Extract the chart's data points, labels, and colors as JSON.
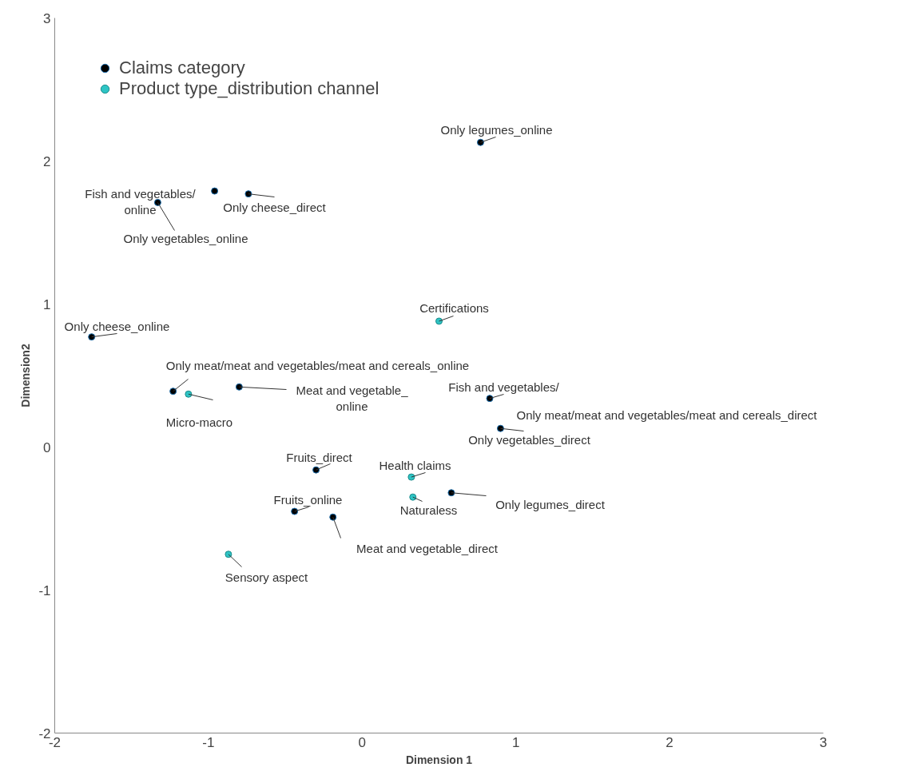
{
  "chart_data": {
    "type": "scatter",
    "xlabel": "Dimension 1",
    "ylabel": "Dimension2",
    "xlim": [
      -2,
      3
    ],
    "ylim": [
      -2,
      3
    ],
    "xticks": [
      -2,
      -1,
      0,
      1,
      2,
      3
    ],
    "yticks": [
      -2,
      -1,
      0,
      1,
      2,
      3
    ],
    "grid": false,
    "legend": "top left",
    "marker": "circle",
    "series": [
      {
        "name": "Claims category",
        "color": "#000000",
        "x": [
          0.77,
          -0.96,
          -0.74,
          -1.33,
          -1.76,
          -1.23,
          -0.8,
          0.83,
          0.9,
          -0.3,
          0.58,
          -0.44,
          -0.19
        ],
        "values": [
          2.13,
          1.79,
          1.77,
          1.71,
          0.77,
          0.39,
          0.42,
          0.34,
          0.13,
          -0.16,
          -0.32,
          -0.45,
          -0.49
        ]
      },
      {
        "name": "Product type_distribution channel",
        "color": "#2ec4c4",
        "x": [
          0.5,
          -1.13,
          0.32,
          0.33,
          -0.87
        ],
        "values": [
          0.88,
          0.37,
          -0.21,
          -0.35,
          -0.75
        ]
      }
    ],
    "annotations": [
      {
        "text": "Only legumes_online",
        "x": 0.77,
        "y": 2.13
      },
      "Fish and vegetables/\nonline",
      {
        "text": "Only cheese_direct",
        "x": -0.74,
        "y": 1.77
      },
      {
        "text": "Only vegetables_online",
        "x": -1.33,
        "y": 1.71
      },
      {
        "text": "Only cheese_online",
        "x": -1.76,
        "y": 0.77
      },
      {
        "text": "Only meat/meat and vegetables/meat and cereals_online",
        "x": -1.23,
        "y": 0.39
      },
      {
        "text": "Meat and vegetable_\nonline",
        "x": -0.8,
        "y": 0.42
      },
      {
        "text": "Fish and vegetables/",
        "x": 0.83,
        "y": 0.34
      },
      "Only meat/meat and vegetables/meat and cereals_direct",
      {
        "text": "Only vegetables_direct",
        "x": 0.9,
        "y": 0.13
      },
      {
        "text": "Fruits_direct",
        "x": -0.3,
        "y": -0.16
      },
      {
        "text": "Only legumes_direct",
        "x": 0.58,
        "y": -0.32
      },
      {
        "text": "Fruits_online",
        "x": -0.44,
        "y": -0.45
      },
      {
        "text": "Meat and vegetable_direct",
        "x": -0.19,
        "y": -0.49
      },
      {
        "text": "Certifications",
        "x": 0.5,
        "y": 0.88
      },
      {
        "text": "Micro-macro",
        "x": -1.13,
        "y": 0.37
      },
      {
        "text": "Health claims",
        "x": 0.32,
        "y": -0.21
      },
      {
        "text": "Naturaless",
        "x": 0.33,
        "y": -0.35
      },
      {
        "text": "Sensory aspect",
        "x": -0.87,
        "y": -0.75
      }
    ]
  }
}
